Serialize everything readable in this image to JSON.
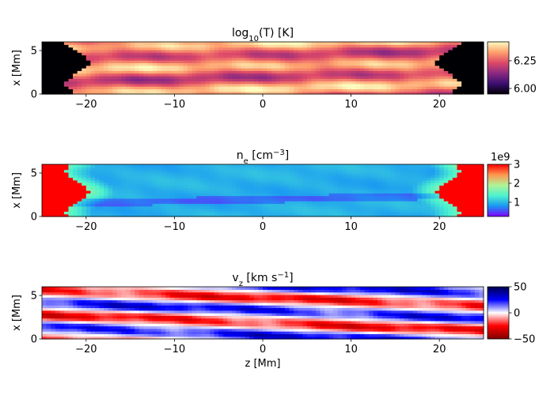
{
  "chart_data": [
    {
      "type": "heatmap",
      "title": "log10(T) [K]",
      "title_main": "log",
      "title_sub": "10",
      "title_rest": "(T) [K]",
      "xlabel": "",
      "ylabel": "x [Mm]",
      "xlim": [
        -25,
        25
      ],
      "ylim": [
        0,
        6
      ],
      "xticks": [
        -20,
        -10,
        0,
        10,
        20
      ],
      "xtick_labels": [
        "−20",
        "−10",
        "0",
        "10",
        "20"
      ],
      "yticks": [
        0,
        5
      ],
      "ytick_labels": [
        "0",
        "5"
      ],
      "colormap": "inferno",
      "colorbar": {
        "range": [
          5.95,
          6.42
        ],
        "ticks": [
          6.0,
          6.25
        ],
        "tick_labels": [
          "6.00",
          "6.25"
        ],
        "offset_label": ""
      },
      "colors": [
        "#000004",
        "#3b0f70",
        "#8c2981",
        "#de4968",
        "#fe9f6d",
        "#fcfdbf"
      ]
    },
    {
      "type": "heatmap",
      "title": "ne [cm−3]",
      "title_main": "n",
      "title_sub": "e",
      "title_rest": " [cm",
      "title_sup": "−3",
      "title_end": "]",
      "xlabel": "",
      "ylabel": "x [Mm]",
      "xlim": [
        -25,
        25
      ],
      "ylim": [
        0,
        6
      ],
      "xticks": [
        -20,
        -10,
        0,
        10,
        20
      ],
      "xtick_labels": [
        "−20",
        "−10",
        "0",
        "10",
        "20"
      ],
      "yticks": [
        0,
        5
      ],
      "ytick_labels": [
        "0",
        "5"
      ],
      "colormap": "rainbow",
      "colorbar": {
        "range": [
          0.25,
          3.0
        ],
        "ticks": [
          1,
          2,
          3
        ],
        "tick_labels": [
          "1",
          "2",
          "3"
        ],
        "offset_label": "1e9"
      },
      "colors": [
        "#7f00ff",
        "#1996f3",
        "#4df3ce",
        "#b2f396",
        "#ff964f",
        "#ff0000"
      ]
    },
    {
      "type": "heatmap",
      "title": "vz [km s−1]",
      "title_main": "v",
      "title_sub": "z",
      "title_rest": " [km s",
      "title_sup": "−1",
      "title_end": "]",
      "xlabel": "z [Mm]",
      "ylabel": "x [Mm]",
      "xlim": [
        -25,
        25
      ],
      "ylim": [
        0,
        6
      ],
      "xticks": [
        -20,
        -10,
        0,
        10,
        20
      ],
      "xtick_labels": [
        "−20",
        "−10",
        "0",
        "10",
        "20"
      ],
      "yticks": [
        0,
        5
      ],
      "ytick_labels": [
        "0",
        "5"
      ],
      "colormap": "seismic_r",
      "colorbar": {
        "range": [
          -50,
          50
        ],
        "ticks": [
          50,
          0,
          -50
        ],
        "tick_labels": [
          "50",
          "0",
          "−50"
        ],
        "offset_label": ""
      },
      "colors": [
        "#7f0000",
        "#ff0000",
        "#ffffff",
        "#0000ff",
        "#00004c"
      ]
    }
  ]
}
